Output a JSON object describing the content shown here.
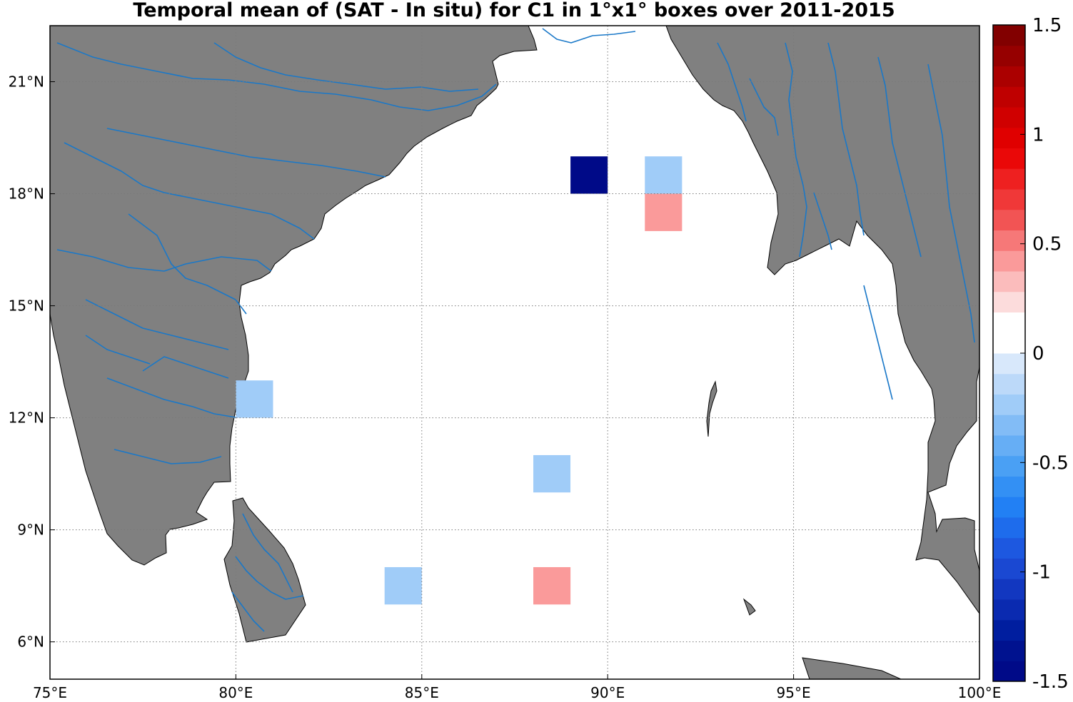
{
  "title": "Temporal mean of (SAT - In situ) for C1 in 1°x1° boxes over 2011-2015",
  "map": {
    "lon_range": [
      75,
      100
    ],
    "lat_range": [
      5,
      22.5
    ],
    "grid": true,
    "lon_ticks": [
      {
        "value": 75,
        "label": "75°E"
      },
      {
        "value": 80,
        "label": "80°E"
      },
      {
        "value": 85,
        "label": "85°E"
      },
      {
        "value": 90,
        "label": "90°E"
      },
      {
        "value": 95,
        "label": "95°E"
      },
      {
        "value": 100,
        "label": "100°E"
      }
    ],
    "lat_ticks": [
      {
        "value": 6,
        "label": "6°N"
      },
      {
        "value": 9,
        "label": "9°N"
      },
      {
        "value": 12,
        "label": "12°N"
      },
      {
        "value": 15,
        "label": "15°N"
      },
      {
        "value": 18,
        "label": "18°N"
      },
      {
        "value": 21,
        "label": "21°N"
      }
    ],
    "colors": {
      "land": "#808080",
      "rivers": "#1a78c8",
      "ocean": "#ffffff",
      "grid": "#7a7a7a"
    }
  },
  "chart_data": {
    "type": "heatmap",
    "cell_size_deg": 1,
    "cells": [
      {
        "lon": 89,
        "lat": 18,
        "w": 1,
        "h": 1,
        "value": -1.5
      },
      {
        "lon": 91,
        "lat": 18,
        "w": 1,
        "h": 1,
        "value": -0.2
      },
      {
        "lon": 91,
        "lat": 17,
        "w": 1,
        "h": 1,
        "value": 0.4
      },
      {
        "lon": 80,
        "lat": 12,
        "w": 1,
        "h": 1,
        "value": -0.2
      },
      {
        "lon": 85,
        "lat": 10,
        "w": 1,
        "h": 2,
        "value": 0.1
      },
      {
        "lon": 88,
        "lat": 10,
        "w": 1,
        "h": 1,
        "value": -0.2
      },
      {
        "lon": 89,
        "lat": 10,
        "w": 1,
        "h": 1,
        "value": 0.1
      },
      {
        "lon": 84,
        "lat": 7,
        "w": 1,
        "h": 1,
        "value": -0.2
      },
      {
        "lon": 88,
        "lat": 7,
        "w": 1,
        "h": 1,
        "value": 0.4
      }
    ],
    "colorbar": {
      "range": [
        -1.5,
        1.5
      ],
      "ticks": [
        {
          "value": 1.5,
          "label": "1.5"
        },
        {
          "value": 1,
          "label": "1"
        },
        {
          "value": 0.5,
          "label": "0.5"
        },
        {
          "value": 0,
          "label": "0"
        },
        {
          "value": -0.5,
          "label": "-0.5"
        },
        {
          "value": -1,
          "label": "-1"
        },
        {
          "value": -1.5,
          "label": "-1.5"
        }
      ],
      "colors": [
        "#000a88",
        "#00128f",
        "#001e9f",
        "#0a2ab0",
        "#1237c0",
        "#1a48d2",
        "#1d58e0",
        "#1e6cec",
        "#2280f4",
        "#3390f4",
        "#4aa0f4",
        "#66aef5",
        "#82bcf6",
        "#a0ccf8",
        "#bcd9f9",
        "#d8e8fb",
        "#ffffff",
        "#ffffff",
        "#fcdcdc",
        "#fbbcbc",
        "#fa9a9a",
        "#f67878",
        "#f25454",
        "#f03838",
        "#ee2020",
        "#ea0808",
        "#e00000",
        "#d00000",
        "#bf0000",
        "#ab0000",
        "#960000",
        "#820000"
      ]
    }
  }
}
